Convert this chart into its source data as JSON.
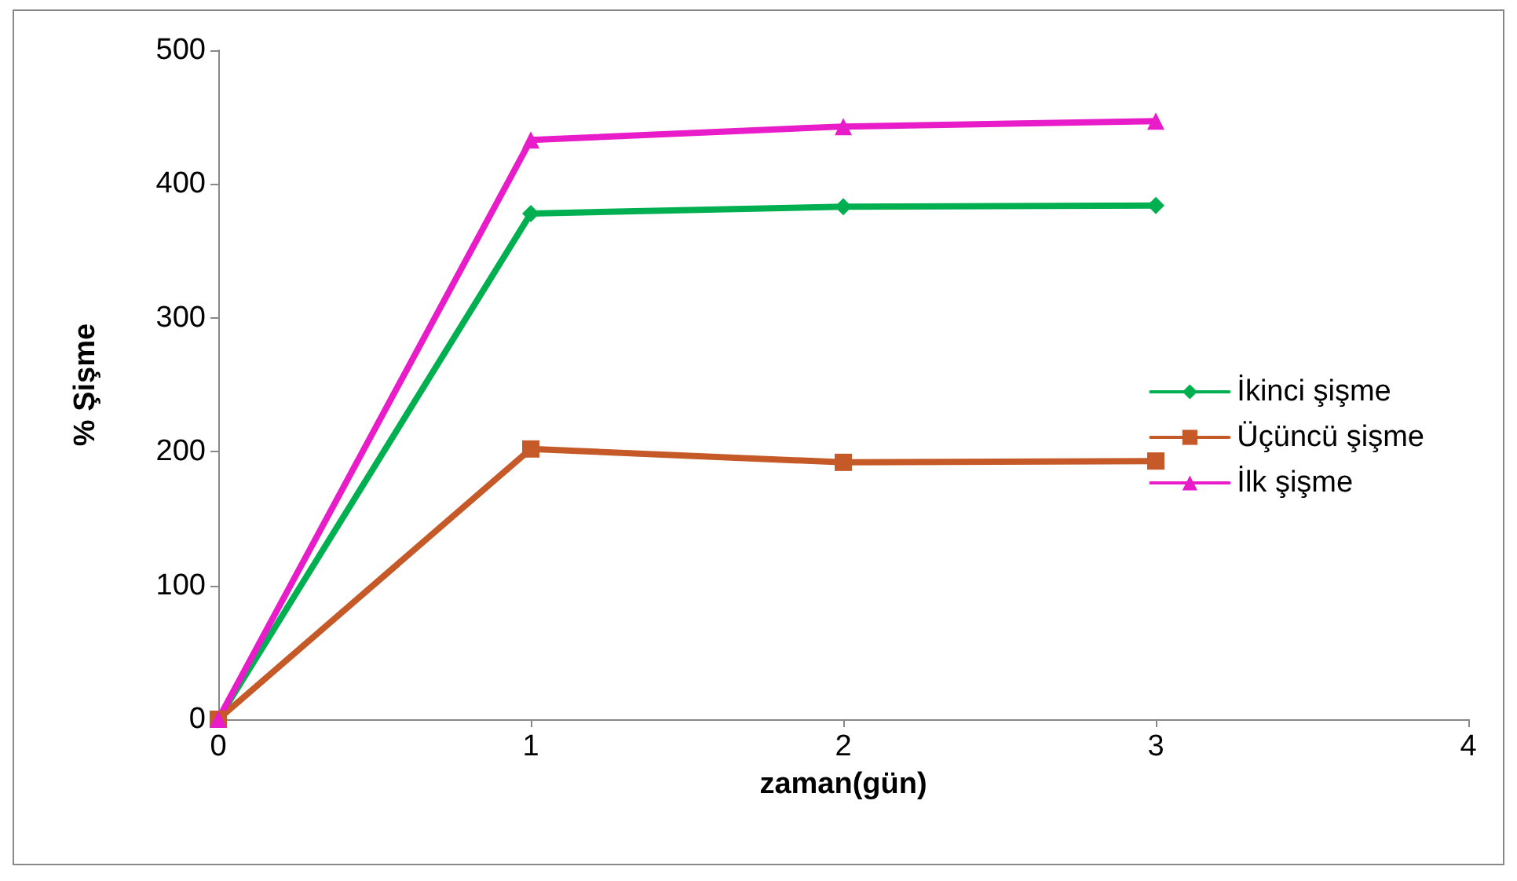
{
  "chart_data": {
    "type": "line",
    "xlabel": "zaman(gün)",
    "ylabel": "% Şişme",
    "x": [
      0,
      1,
      2,
      3
    ],
    "xlim": [
      0,
      4
    ],
    "xticks": [
      0,
      1,
      2,
      3,
      4
    ],
    "ylim": [
      0,
      500
    ],
    "yticks": [
      0,
      100,
      200,
      300,
      400,
      500
    ],
    "grid": false,
    "legend": "right",
    "line_style": "solid",
    "series": [
      {
        "name": "İkinci şişme",
        "color": "#00b050",
        "marker": "diamond",
        "values": [
          0,
          378,
          383,
          384
        ]
      },
      {
        "name": "Üçüncü şişme",
        "color": "#c55a28",
        "marker": "square",
        "values": [
          0,
          202,
          192,
          193
        ]
      },
      {
        "name": "İlk şişme",
        "color": "#e81cc8",
        "marker": "triangle",
        "values": [
          0,
          433,
          443,
          447
        ]
      }
    ]
  }
}
